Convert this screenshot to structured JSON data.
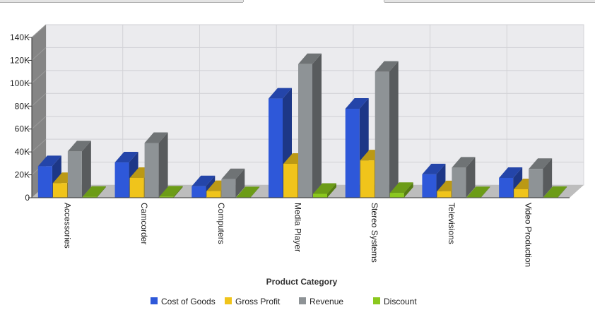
{
  "chart_data": {
    "type": "bar",
    "title": "",
    "xlabel": "Product Category",
    "ylabel": "",
    "categories": [
      "Accessories",
      "Camcorder",
      "Computers",
      "Media Player",
      "Stereo Systems",
      "Televisions",
      "Video Production"
    ],
    "series": [
      {
        "name": "Cost of Goods",
        "values": [
          27500,
          30800,
          10000,
          86600,
          77700,
          20400,
          17300
        ],
        "color": "#2e58d9"
      },
      {
        "name": "Gross Profit",
        "values": [
          12800,
          17300,
          5800,
          29600,
          32600,
          5600,
          7400
        ],
        "color": "#f0c41b"
      },
      {
        "name": "Revenue",
        "values": [
          40500,
          47800,
          16200,
          116700,
          110000,
          26300,
          25100
        ],
        "color": "#8e9396"
      },
      {
        "name": "Discount",
        "values": [
          800,
          1000,
          400,
          3400,
          4200,
          500,
          600
        ],
        "color": "#8bc81e"
      }
    ],
    "y_ticks": [
      "0",
      "20K",
      "40K",
      "60K",
      "80K",
      "100K",
      "120K",
      "140K"
    ],
    "ylim": [
      0,
      140000
    ],
    "grid": true,
    "legend_position": "bottom",
    "three_d": true
  }
}
